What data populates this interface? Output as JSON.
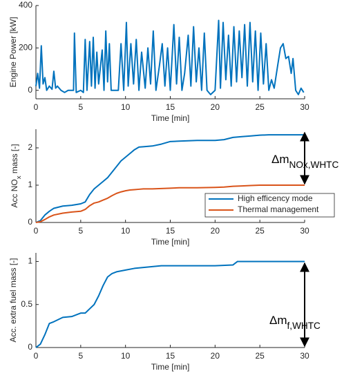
{
  "chart_data": [
    {
      "type": "line",
      "xlabel": "Time [min]",
      "ylabel": "Engine Power [kW]",
      "color": "#0072bd",
      "xlim": [
        0,
        30
      ],
      "xticks": [
        0,
        5,
        10,
        15,
        20,
        25,
        30
      ],
      "ylim": [
        -40,
        400
      ],
      "yticks": [
        0,
        200,
        400
      ],
      "x": [
        0,
        0.2,
        0.4,
        0.6,
        0.8,
        1.0,
        1.2,
        1.5,
        1.8,
        2.0,
        2.2,
        2.4,
        2.8,
        3.2,
        3.6,
        4.0,
        4.2,
        4.3,
        4.5,
        5.0,
        5.3,
        5.5,
        5.7,
        6.0,
        6.2,
        6.4,
        6.6,
        6.8,
        7.0,
        7.4,
        7.6,
        7.8,
        8.0,
        8.2,
        8.4,
        8.8,
        9.2,
        9.5,
        9.8,
        10.1,
        10.3,
        10.6,
        10.9,
        11.2,
        11.5,
        11.8,
        12.2,
        12.5,
        12.8,
        13.1,
        13.4,
        13.8,
        14.1,
        14.4,
        14.7,
        15.0,
        15.4,
        15.7,
        16.0,
        16.3,
        16.6,
        17.0,
        17.3,
        17.6,
        17.9,
        18.2,
        18.5,
        18.8,
        19.1,
        19.5,
        20.0,
        20.4,
        20.6,
        20.9,
        21.2,
        21.5,
        21.8,
        22.1,
        22.4,
        22.7,
        23.0,
        23.3,
        23.6,
        23.9,
        24.2,
        24.5,
        24.8,
        25.1,
        25.4,
        25.7,
        26.0,
        26.3,
        26.6,
        27.0,
        27.3,
        27.6,
        27.9,
        28.2,
        28.5,
        28.7,
        29.0,
        29.3,
        29.6,
        29.9
      ],
      "values": [
        20,
        80,
        10,
        210,
        30,
        60,
        0,
        20,
        5,
        90,
        10,
        20,
        0,
        -10,
        0,
        0,
        0,
        270,
        -10,
        0,
        -10,
        240,
        0,
        230,
        20,
        250,
        10,
        180,
        30,
        190,
        0,
        280,
        40,
        220,
        0,
        0,
        0,
        220,
        0,
        320,
        20,
        220,
        30,
        240,
        0,
        180,
        10,
        200,
        30,
        280,
        0,
        120,
        220,
        20,
        200,
        0,
        310,
        30,
        250,
        0,
        80,
        260,
        20,
        300,
        40,
        200,
        0,
        270,
        0,
        -20,
        0,
        330,
        10,
        320,
        50,
        260,
        20,
        300,
        40,
        280,
        60,
        310,
        20,
        320,
        40,
        280,
        0,
        270,
        30,
        220,
        0,
        50,
        10,
        120,
        200,
        220,
        150,
        160,
        80,
        150,
        0,
        -20,
        10,
        -10
      ]
    },
    {
      "type": "line",
      "xlabel": "Time [min]",
      "ylabel": [
        {
          "text": "Acc NO"
        },
        {
          "sub": "x"
        },
        {
          "text": " mass [-]"
        }
      ],
      "xlim": [
        0,
        30
      ],
      "xticks": [
        0,
        5,
        10,
        15,
        20,
        25,
        30
      ],
      "ylim": [
        0,
        2.5
      ],
      "yticks": [
        0,
        1,
        2
      ],
      "legend": "lower right",
      "annotation": [
        {
          "text": "Δm"
        },
        {
          "sub": "NOx,WHTC"
        }
      ],
      "x": [
        0,
        0.5,
        1,
        1.5,
        2,
        3,
        4,
        5,
        5.5,
        6,
        6.5,
        7,
        7.5,
        8,
        8.5,
        9,
        9.5,
        10,
        10.5,
        11,
        11.5,
        12,
        13,
        14,
        15,
        16,
        18,
        20,
        21,
        22,
        23,
        24,
        25,
        26,
        28,
        30
      ],
      "series": [
        {
          "name": "High efficency mode",
          "color": "#0072bd",
          "values": [
            0,
            0.05,
            0.2,
            0.3,
            0.38,
            0.44,
            0.46,
            0.5,
            0.55,
            0.75,
            0.9,
            1.0,
            1.1,
            1.2,
            1.35,
            1.5,
            1.65,
            1.75,
            1.85,
            1.95,
            2.02,
            2.03,
            2.05,
            2.1,
            2.17,
            2.18,
            2.2,
            2.2,
            2.22,
            2.28,
            2.3,
            2.32,
            2.34,
            2.35,
            2.35,
            2.35
          ]
        },
        {
          "name": "Thermal management",
          "color": "#d95319",
          "values": [
            0,
            0.02,
            0.08,
            0.15,
            0.2,
            0.25,
            0.28,
            0.3,
            0.35,
            0.45,
            0.52,
            0.55,
            0.6,
            0.65,
            0.72,
            0.78,
            0.82,
            0.85,
            0.87,
            0.88,
            0.89,
            0.9,
            0.9,
            0.91,
            0.92,
            0.93,
            0.93,
            0.94,
            0.95,
            0.97,
            0.98,
            0.99,
            1.0,
            1.0,
            1.0,
            1.0
          ]
        }
      ]
    },
    {
      "type": "line",
      "xlabel": "Time [min]",
      "ylabel": "Acc. extra fuel mass [-]",
      "color": "#0072bd",
      "xlim": [
        0,
        30
      ],
      "xticks": [
        0,
        5,
        10,
        15,
        20,
        25,
        30
      ],
      "ylim": [
        0,
        1.1
      ],
      "yticks": [
        0,
        0.5,
        1
      ],
      "annotation": [
        {
          "text": "Δm"
        },
        {
          "sub": "f,WHTC"
        }
      ],
      "x": [
        0,
        0.5,
        1,
        1.5,
        2,
        3,
        4,
        5,
        5.5,
        6,
        6.5,
        7,
        7.5,
        8,
        8.5,
        9,
        10,
        11,
        12,
        14,
        16,
        18,
        20,
        22,
        22.5,
        24,
        26,
        28,
        30
      ],
      "values": [
        0,
        0.04,
        0.15,
        0.28,
        0.3,
        0.35,
        0.36,
        0.4,
        0.4,
        0.45,
        0.5,
        0.6,
        0.72,
        0.82,
        0.86,
        0.88,
        0.9,
        0.92,
        0.93,
        0.95,
        0.95,
        0.95,
        0.95,
        0.96,
        1.0,
        1.0,
        1.0,
        1.0,
        1.0
      ]
    }
  ]
}
